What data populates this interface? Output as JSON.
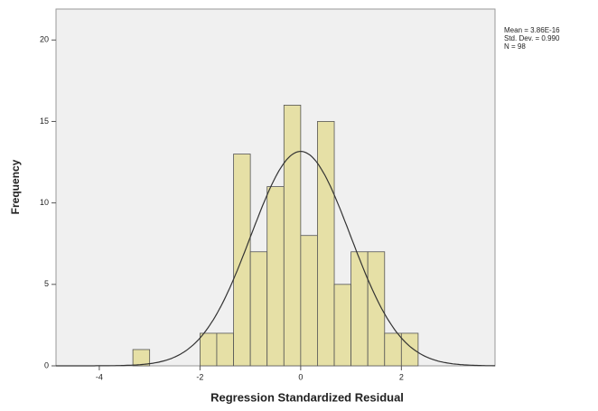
{
  "chart_data": {
    "type": "histogram",
    "x_label": "Regression Standardized Residual",
    "y_label": "Frequency",
    "bins": [
      -3.333,
      -3,
      -2.667,
      -2.333,
      -2,
      -1.667,
      -1.333,
      -1,
      -0.667,
      -0.333,
      0,
      0.333,
      0.667,
      1,
      1.333,
      1.667,
      2,
      2.333
    ],
    "values": [
      1,
      0,
      0,
      0,
      2,
      2,
      13,
      7,
      11,
      16,
      8,
      15,
      5,
      7,
      7,
      2,
      2
    ],
    "color": "#e6e0a6",
    "xlim": [
      -4.86,
      3.86
    ],
    "xticks": [
      -4,
      -2,
      0,
      2
    ],
    "ylim": [
      0,
      21.9
    ],
    "yticks": [
      0,
      5,
      10,
      15,
      20
    ],
    "stats": [
      {
        "value": 3.86e-16,
        "label": "Mean = 3.86E-16"
      },
      {
        "value": 0.99,
        "label": "Std. Dev. = 0.990"
      },
      {
        "value": 98,
        "label": "N = 98"
      }
    ]
  }
}
